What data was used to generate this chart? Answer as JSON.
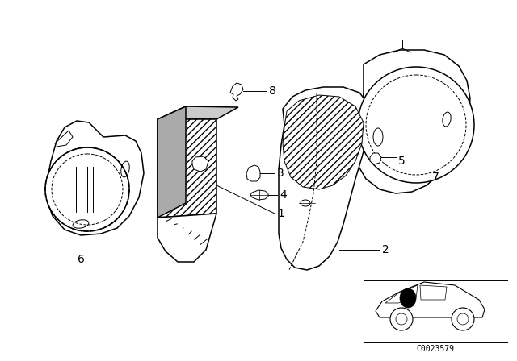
{
  "bg_color": "#ffffff",
  "line_color": "#000000",
  "fig_width": 6.4,
  "fig_height": 4.48,
  "dpi": 100,
  "watermark": "C0023579"
}
